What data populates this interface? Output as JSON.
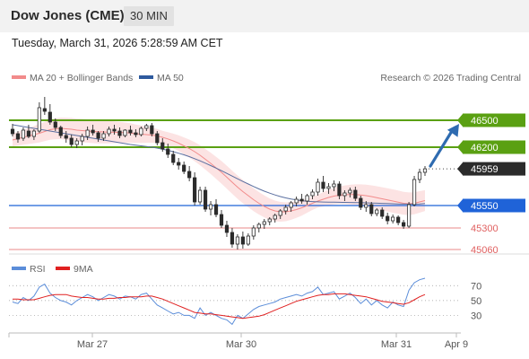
{
  "header": {
    "title": "Dow Jones (CME)",
    "timeframe": "30 MIN"
  },
  "datetime": "Tuesday, March 31, 2026 5:28:59 AM CET",
  "legend": {
    "bollinger": {
      "label": "MA 20 + Bollinger Bands",
      "color": "#f28b8b"
    },
    "ma50": {
      "label": "MA 50",
      "color": "#2e5a9e"
    },
    "credit": "Research © 2026 Trading Central"
  },
  "rsi_legend": {
    "rsi": {
      "label": "RSI",
      "color": "#5b8dd9"
    },
    "ma9": {
      "label": "9MA",
      "color": "#e02020"
    }
  },
  "colors": {
    "resistance": "#5aa012",
    "pivot": "#1f63d8",
    "support": "#e06060",
    "last": "#2b2b2b",
    "arrow": "#2e6bb0",
    "bull": "#ffffff",
    "bear": "#2b2b2b"
  },
  "chart_data": {
    "type": "candlestick",
    "ylim": [
      44880,
      46880
    ],
    "x_labels": [
      "Mar 27",
      "Mar 30",
      "Mar 31",
      "Apr 9"
    ],
    "levels": [
      {
        "value": 46500,
        "label": "46500",
        "kind": "resistance"
      },
      {
        "value": 46200,
        "label": "46200",
        "kind": "resistance"
      },
      {
        "value": 45959,
        "label": "45959",
        "kind": "last"
      },
      {
        "value": 45550,
        "label": "45550",
        "kind": "pivot"
      },
      {
        "value": 45300,
        "label": "45300",
        "kind": "support"
      },
      {
        "value": 45060,
        "label": "45060",
        "kind": "support"
      }
    ],
    "ohlc": [
      [
        46400,
        46460,
        46320,
        46350
      ],
      [
        46350,
        46380,
        46250,
        46290
      ],
      [
        46300,
        46420,
        46270,
        46390
      ],
      [
        46380,
        46450,
        46300,
        46320
      ],
      [
        46320,
        46400,
        46280,
        46380
      ],
      [
        46380,
        46700,
        46360,
        46640
      ],
      [
        46630,
        46760,
        46560,
        46600
      ],
      [
        46590,
        46680,
        46450,
        46480
      ],
      [
        46480,
        46520,
        46380,
        46420
      ],
      [
        46420,
        46440,
        46300,
        46330
      ],
      [
        46330,
        46380,
        46250,
        46300
      ],
      [
        46300,
        46340,
        46200,
        46230
      ],
      [
        46230,
        46300,
        46190,
        46270
      ],
      [
        46270,
        46350,
        46220,
        46320
      ],
      [
        46320,
        46430,
        46280,
        46390
      ],
      [
        46390,
        46450,
        46330,
        46360
      ],
      [
        46360,
        46380,
        46260,
        46300
      ],
      [
        46300,
        46380,
        46270,
        46350
      ],
      [
        46350,
        46430,
        46320,
        46400
      ],
      [
        46400,
        46450,
        46340,
        46380
      ],
      [
        46380,
        46420,
        46300,
        46330
      ],
      [
        46330,
        46400,
        46310,
        46390
      ],
      [
        46390,
        46440,
        46330,
        46360
      ],
      [
        46360,
        46400,
        46310,
        46340
      ],
      [
        46340,
        46430,
        46320,
        46410
      ],
      [
        46410,
        46460,
        46380,
        46440
      ],
      [
        46440,
        46470,
        46320,
        46350
      ],
      [
        46350,
        46380,
        46220,
        46250
      ],
      [
        46250,
        46300,
        46150,
        46180
      ],
      [
        46180,
        46240,
        46080,
        46120
      ],
      [
        46120,
        46160,
        46000,
        46030
      ],
      [
        46030,
        46080,
        45950,
        46000
      ],
      [
        46000,
        46040,
        45900,
        45930
      ],
      [
        45930,
        45990,
        45820,
        45860
      ],
      [
        45860,
        45920,
        45550,
        45590
      ],
      [
        45590,
        45760,
        45560,
        45720
      ],
      [
        45720,
        45760,
        45480,
        45510
      ],
      [
        45510,
        45600,
        45440,
        45560
      ],
      [
        45560,
        45620,
        45420,
        45450
      ],
      [
        45450,
        45500,
        45300,
        45330
      ],
      [
        45330,
        45380,
        45200,
        45250
      ],
      [
        45250,
        45300,
        45080,
        45120
      ],
      [
        45120,
        45230,
        45060,
        45200
      ],
      [
        45200,
        45260,
        45070,
        45120
      ],
      [
        45120,
        45240,
        45100,
        45210
      ],
      [
        45210,
        45330,
        45170,
        45300
      ],
      [
        45300,
        45360,
        45250,
        45340
      ],
      [
        45340,
        45400,
        45290,
        45370
      ],
      [
        45370,
        45420,
        45330,
        45400
      ],
      [
        45400,
        45460,
        45360,
        45440
      ],
      [
        45440,
        45510,
        45400,
        45490
      ],
      [
        45490,
        45560,
        45450,
        45530
      ],
      [
        45530,
        45600,
        45480,
        45580
      ],
      [
        45580,
        45650,
        45540,
        45620
      ],
      [
        45620,
        45680,
        45570,
        45600
      ],
      [
        45600,
        45680,
        45560,
        45660
      ],
      [
        45660,
        45730,
        45620,
        45700
      ],
      [
        45700,
        45850,
        45660,
        45810
      ],
      [
        45810,
        45880,
        45700,
        45740
      ],
      [
        45740,
        45800,
        45680,
        45760
      ],
      [
        45760,
        45830,
        45710,
        45790
      ],
      [
        45790,
        45820,
        45620,
        45660
      ],
      [
        45660,
        45720,
        45600,
        45690
      ],
      [
        45690,
        45750,
        45640,
        45720
      ],
      [
        45720,
        45760,
        45600,
        45630
      ],
      [
        45630,
        45660,
        45500,
        45530
      ],
      [
        45530,
        45600,
        45480,
        45560
      ],
      [
        45560,
        45590,
        45430,
        45460
      ],
      [
        45460,
        45520,
        45430,
        45500
      ],
      [
        45500,
        45530,
        45400,
        45430
      ],
      [
        45430,
        45470,
        45340,
        45380
      ],
      [
        45380,
        45450,
        45350,
        45420
      ],
      [
        45420,
        45440,
        45330,
        45360
      ],
      [
        45360,
        45390,
        45290,
        45320
      ],
      [
        45320,
        45590,
        45300,
        45560
      ],
      [
        45560,
        45880,
        45540,
        45840
      ],
      [
        45840,
        45960,
        45800,
        45920
      ],
      [
        45920,
        45990,
        45880,
        45959
      ]
    ],
    "ma20": [
      46280,
      46295,
      46310,
      46325,
      46340,
      46355,
      46375,
      46395,
      46405,
      46410,
      46405,
      46400,
      46390,
      46385,
      46380,
      46375,
      46372,
      46370,
      46368,
      46366,
      46364,
      46362,
      46358,
      46350,
      46345,
      46340,
      46335,
      46325,
      46310,
      46292,
      46270,
      46245,
      46215,
      46185,
      46150,
      46110,
      46065,
      46020,
      45970,
      45920,
      45865,
      45810,
      45755,
      45705,
      45660,
      45615,
      45575,
      45540,
      45510,
      45490,
      45480,
      45480,
      45490,
      45505,
      45525,
      45550,
      45575,
      45600,
      45620,
      45640,
      45655,
      45665,
      45670,
      45672,
      45672,
      45668,
      45660,
      45650,
      45638,
      45625,
      45612,
      45600,
      45588,
      45575,
      45570,
      45575,
      45590,
      45605
    ],
    "ma50": [
      46450,
      46440,
      46430,
      46420,
      46410,
      46400,
      46390,
      46380,
      46370,
      46360,
      46350,
      46340,
      46330,
      46320,
      46310,
      46300,
      46290,
      46280,
      46270,
      46260,
      46250,
      46240,
      46230,
      46222,
      46215,
      46208,
      46200,
      46190,
      46178,
      46165,
      46150,
      46133,
      46115,
      46095,
      46072,
      46048,
      46022,
      45995,
      45967,
      45938,
      45908,
      45878,
      45848,
      45818,
      45790,
      45762,
      45735,
      45710,
      45688,
      45668,
      45650,
      45635,
      45622,
      45612,
      45604,
      45598,
      45594,
      45591,
      45589,
      45588,
      45587,
      45586,
      45585,
      45584,
      45583,
      45582,
      45580,
      45578,
      45576,
      45574,
      45572,
      45570,
      45568,
      45566,
      45565,
      45566,
      45568,
      45572
    ],
    "rsi": [
      48,
      46,
      54,
      50,
      56,
      68,
      72,
      60,
      54,
      50,
      48,
      44,
      50,
      54,
      58,
      55,
      50,
      54,
      58,
      56,
      52,
      56,
      55,
      52,
      58,
      60,
      52,
      44,
      40,
      36,
      32,
      34,
      30,
      30,
      26,
      40,
      30,
      34,
      30,
      26,
      24,
      18,
      30,
      26,
      32,
      38,
      42,
      44,
      46,
      48,
      52,
      54,
      56,
      58,
      56,
      60,
      62,
      68,
      58,
      60,
      62,
      52,
      56,
      60,
      54,
      46,
      52,
      44,
      50,
      44,
      40,
      48,
      44,
      42,
      64,
      74,
      78,
      80
    ],
    "rsi_ma9": [
      52,
      52,
      51,
      51,
      51,
      53,
      55,
      57,
      58,
      58,
      58,
      56,
      55,
      54,
      54,
      53,
      52,
      52,
      53,
      53,
      54,
      54,
      55,
      55,
      55,
      56,
      56,
      54,
      52,
      49,
      46,
      43,
      40,
      37,
      34,
      33,
      32,
      32,
      31,
      30,
      29,
      28,
      27,
      26,
      27,
      28,
      29,
      31,
      34,
      37,
      40,
      43,
      46,
      49,
      51,
      53,
      55,
      57,
      58,
      58,
      59,
      59,
      59,
      58,
      57,
      56,
      55,
      53,
      51,
      49,
      48,
      47,
      46,
      45,
      47,
      51,
      55,
      58
    ],
    "rsi_ticks": [
      70,
      50,
      30
    ],
    "rsi_ylim": [
      10,
      80
    ]
  }
}
